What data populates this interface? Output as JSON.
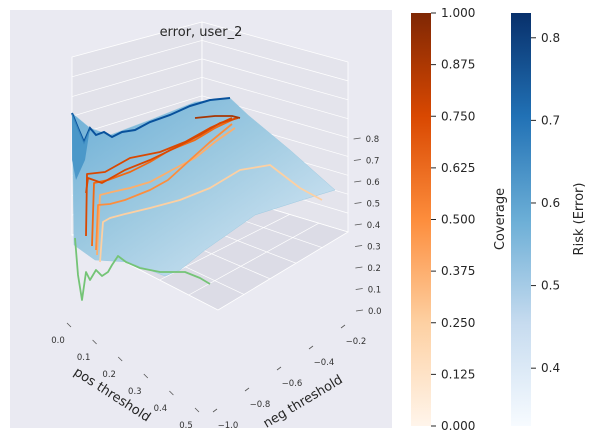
{
  "chart_data": {
    "type": "surface3d",
    "title": "error, user_2",
    "xlabel": "pos threshold",
    "ylabel": "neg threshold",
    "x_ticks": [
      "0.0",
      "0.1",
      "0.2",
      "0.3",
      "0.4",
      "0.5"
    ],
    "y_ticks": [
      "−1.0",
      "−0.8",
      "−0.6",
      "−0.4",
      "−0.2"
    ],
    "z_ticks": [
      "0.0",
      "0.1",
      "0.2",
      "0.3",
      "0.4",
      "0.5",
      "0.6",
      "0.7",
      "0.8"
    ],
    "xlim": [
      0,
      0.5
    ],
    "ylim": [
      -1.0,
      -0.1
    ],
    "zlim": [
      0,
      0.85
    ],
    "surface_colormap": "Blues",
    "contour_colormap": "Oranges",
    "risk_colorbar": {
      "label": "Risk (Error)",
      "ticks": [
        "0.4",
        "0.5",
        "0.6",
        "0.7",
        "0.8"
      ],
      "range": [
        0.33,
        0.83
      ]
    },
    "coverage_colorbar": {
      "label": "Coverage",
      "ticks": [
        "0.000",
        "0.125",
        "0.250",
        "0.375",
        "0.500",
        "0.625",
        "0.750",
        "0.875",
        "1.000"
      ],
      "range": [
        0,
        1
      ]
    },
    "coverage_contours": [
      {
        "level": 0.125,
        "color": "#7ec87a"
      },
      {
        "level": 0.25,
        "color": "#fdd0a2"
      },
      {
        "level": 0.375,
        "color": "#fdae6b"
      },
      {
        "level": 0.5,
        "color": "#fd8d3c"
      },
      {
        "level": 0.625,
        "color": "#f16913"
      },
      {
        "level": 0.75,
        "color": "#d94801"
      },
      {
        "level": 0.875,
        "color": "#a63603"
      }
    ]
  }
}
